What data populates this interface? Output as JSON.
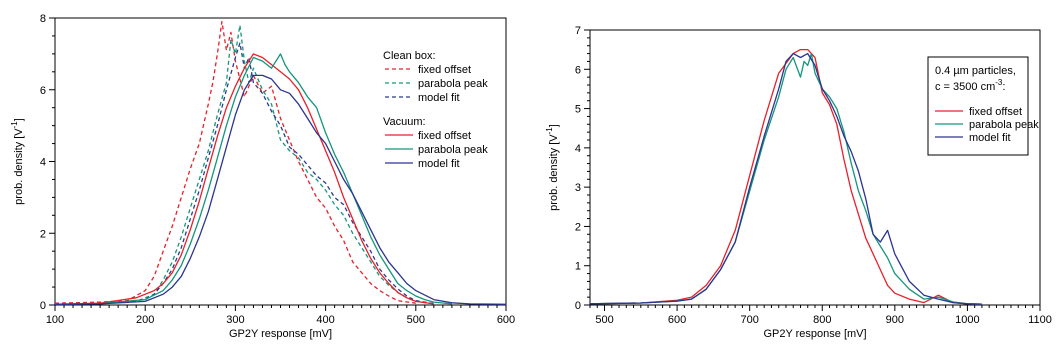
{
  "chart_data": [
    {
      "type": "line",
      "xlabel": "GP2Y response [mV]",
      "ylabel_base": "prob. density [V",
      "ylabel_sup": "-1",
      "ylabel_end": "]",
      "xlim": [
        100,
        600
      ],
      "ylim": [
        0,
        8
      ],
      "xticks": [
        100,
        200,
        300,
        400,
        500,
        600
      ],
      "yticks": [
        0,
        2,
        4,
        6,
        8
      ],
      "legend_position": "top-right",
      "legend_groups": [
        {
          "title": "Clean box:",
          "entries": [
            "fixed offset",
            "parabola peak",
            "model fit"
          ],
          "dashed": true
        },
        {
          "title": "Vacuum:",
          "entries": [
            "fixed offset",
            "parabola peak",
            "model fit"
          ],
          "dashed": false
        }
      ],
      "series": [
        {
          "name": "fixed offset",
          "group": "Clean box",
          "color": "#e8202a",
          "dashed": true,
          "x": [
            100,
            150,
            180,
            200,
            210,
            220,
            230,
            240,
            250,
            260,
            270,
            275,
            280,
            285,
            290,
            295,
            300,
            305,
            310,
            320,
            330,
            340,
            350,
            360,
            370,
            380,
            390,
            400,
            410,
            420,
            430,
            440,
            450,
            460,
            470,
            480,
            500
          ],
          "y": [
            0.05,
            0.08,
            0.12,
            0.4,
            0.8,
            1.5,
            2.2,
            3.0,
            3.8,
            4.5,
            5.6,
            6.2,
            7.0,
            7.9,
            7.1,
            7.6,
            6.8,
            6.3,
            5.8,
            6.4,
            5.9,
            6.1,
            5.2,
            4.6,
            4.0,
            3.5,
            3.0,
            2.7,
            2.2,
            1.8,
            1.2,
            0.9,
            0.6,
            0.4,
            0.25,
            0.12,
            0.05
          ]
        },
        {
          "name": "parabola peak",
          "group": "Clean box",
          "color": "#14967c",
          "dashed": true,
          "x": [
            100,
            150,
            190,
            210,
            220,
            230,
            240,
            250,
            260,
            270,
            280,
            290,
            295,
            300,
            305,
            310,
            315,
            320,
            330,
            340,
            350,
            360,
            370,
            380,
            390,
            400,
            410,
            420,
            430,
            440,
            450,
            460,
            470,
            480,
            490,
            500,
            520
          ],
          "y": [
            0.03,
            0.05,
            0.1,
            0.3,
            0.7,
            1.2,
            1.9,
            2.7,
            3.5,
            4.3,
            5.3,
            6.2,
            7.4,
            7.0,
            7.8,
            6.8,
            6.2,
            6.6,
            6.0,
            5.6,
            4.6,
            4.3,
            4.1,
            3.7,
            3.5,
            3.2,
            2.8,
            2.5,
            2.0,
            1.6,
            1.2,
            0.8,
            0.55,
            0.35,
            0.2,
            0.1,
            0.04
          ]
        },
        {
          "name": "model fit",
          "group": "Clean box",
          "color": "#2c3a8c",
          "dashed": true,
          "x": [
            100,
            150,
            200,
            210,
            220,
            230,
            240,
            250,
            260,
            270,
            280,
            290,
            300,
            305,
            310,
            315,
            320,
            330,
            340,
            350,
            360,
            370,
            380,
            390,
            400,
            410,
            420,
            430,
            440,
            450,
            460,
            470,
            480,
            490,
            500,
            520
          ],
          "y": [
            0.02,
            0.04,
            0.15,
            0.3,
            0.6,
            1.0,
            1.6,
            2.4,
            3.2,
            4.1,
            5.0,
            6.0,
            6.9,
            7.3,
            6.6,
            6.9,
            6.2,
            5.9,
            5.4,
            5.0,
            4.4,
            4.2,
            3.9,
            3.6,
            3.4,
            3.0,
            2.8,
            2.3,
            1.9,
            1.5,
            1.0,
            0.7,
            0.45,
            0.25,
            0.12,
            0.04
          ]
        },
        {
          "name": "fixed offset",
          "group": "Vacuum",
          "color": "#e8202a",
          "dashed": false,
          "x": [
            100,
            150,
            190,
            210,
            220,
            230,
            240,
            250,
            260,
            270,
            280,
            290,
            300,
            310,
            320,
            330,
            340,
            350,
            360,
            370,
            380,
            390,
            400,
            410,
            420,
            430,
            440,
            450,
            460,
            470,
            480,
            490,
            500,
            520
          ],
          "y": [
            0.02,
            0.05,
            0.2,
            0.4,
            0.6,
            0.9,
            1.4,
            2.1,
            2.9,
            3.8,
            4.7,
            5.5,
            6.1,
            6.6,
            7.0,
            6.9,
            6.7,
            6.5,
            6.3,
            6.0,
            5.5,
            4.9,
            4.3,
            3.7,
            3.0,
            2.4,
            1.8,
            1.3,
            0.9,
            0.6,
            0.35,
            0.2,
            0.1,
            0.03
          ]
        },
        {
          "name": "parabola peak",
          "group": "Vacuum",
          "color": "#14967c",
          "dashed": false,
          "x": [
            100,
            150,
            200,
            220,
            230,
            240,
            250,
            260,
            270,
            280,
            290,
            300,
            310,
            320,
            330,
            340,
            350,
            355,
            360,
            370,
            380,
            390,
            400,
            410,
            420,
            430,
            440,
            450,
            460,
            470,
            480,
            490,
            500,
            510,
            520,
            540
          ],
          "y": [
            0.02,
            0.04,
            0.15,
            0.4,
            0.7,
            1.1,
            1.7,
            2.4,
            3.2,
            4.1,
            5.0,
            5.8,
            6.4,
            6.9,
            6.8,
            6.6,
            7.0,
            6.7,
            6.5,
            6.2,
            5.8,
            5.5,
            4.8,
            4.2,
            3.7,
            3.1,
            2.5,
            1.9,
            1.4,
            1.0,
            0.6,
            0.4,
            0.25,
            0.15,
            0.08,
            0.03
          ]
        },
        {
          "name": "model fit",
          "group": "Vacuum",
          "color": "#2c3590",
          "dashed": false,
          "x": [
            100,
            150,
            200,
            220,
            230,
            240,
            250,
            260,
            270,
            280,
            290,
            300,
            310,
            320,
            330,
            340,
            350,
            360,
            370,
            380,
            390,
            400,
            410,
            420,
            430,
            440,
            450,
            460,
            470,
            480,
            490,
            500,
            520,
            540,
            560,
            600
          ],
          "y": [
            0.02,
            0.03,
            0.1,
            0.3,
            0.5,
            0.8,
            1.3,
            1.9,
            2.6,
            3.5,
            4.4,
            5.3,
            6.0,
            6.4,
            6.4,
            6.3,
            6.0,
            5.9,
            5.6,
            5.2,
            4.8,
            4.5,
            4.0,
            3.5,
            3.1,
            2.6,
            2.1,
            1.6,
            1.2,
            0.9,
            0.6,
            0.4,
            0.15,
            0.06,
            0.03,
            0.02
          ]
        }
      ]
    },
    {
      "type": "line",
      "xlabel": "GP2Y response [mV]",
      "ylabel_base": "prob. density [V",
      "ylabel_sup": "-1",
      "ylabel_end": "]",
      "xlim": [
        480,
        1100
      ],
      "ylim": [
        0,
        7
      ],
      "xticks": [
        500,
        600,
        700,
        800,
        900,
        1000,
        1100
      ],
      "yticks": [
        0,
        1,
        2,
        3,
        4,
        5,
        6,
        7
      ],
      "legend_position": "top-right",
      "legend_header": [
        "0.4 µm particles,",
        "c = 3500 cm",
        "-3",
        ":"
      ],
      "series": [
        {
          "name": "fixed offset",
          "color": "#e8202a",
          "dashed": false,
          "x": [
            480,
            550,
            600,
            620,
            640,
            660,
            680,
            700,
            720,
            740,
            760,
            770,
            780,
            790,
            800,
            810,
            820,
            830,
            840,
            850,
            860,
            870,
            880,
            890,
            900,
            920,
            940,
            960,
            980,
            1000,
            1020
          ],
          "y": [
            0.03,
            0.05,
            0.12,
            0.2,
            0.5,
            1.0,
            1.9,
            3.3,
            4.7,
            5.9,
            6.4,
            6.5,
            6.5,
            6.3,
            5.4,
            5.1,
            4.6,
            3.7,
            2.9,
            2.3,
            1.7,
            1.3,
            0.9,
            0.5,
            0.3,
            0.15,
            0.06,
            0.25,
            0.06,
            0.03,
            0.02
          ]
        },
        {
          "name": "parabola peak",
          "group": "",
          "color": "#14967c",
          "dashed": false,
          "x": [
            480,
            550,
            600,
            620,
            640,
            660,
            680,
            700,
            720,
            740,
            750,
            760,
            770,
            775,
            780,
            785,
            790,
            800,
            810,
            820,
            830,
            840,
            850,
            860,
            870,
            880,
            890,
            900,
            920,
            940,
            960,
            980,
            1000,
            1020
          ],
          "y": [
            0.03,
            0.05,
            0.1,
            0.15,
            0.4,
            0.9,
            1.6,
            2.9,
            4.2,
            5.3,
            6.0,
            6.3,
            5.8,
            6.2,
            6.1,
            6.4,
            5.9,
            5.5,
            5.3,
            5.0,
            4.4,
            3.6,
            2.9,
            2.4,
            1.8,
            1.5,
            1.2,
            0.8,
            0.4,
            0.15,
            0.2,
            0.08,
            0.03,
            0.02
          ]
        },
        {
          "name": "model fit",
          "group": "",
          "color": "#2c3590",
          "dashed": false,
          "x": [
            480,
            550,
            600,
            620,
            640,
            660,
            680,
            700,
            720,
            740,
            750,
            760,
            770,
            780,
            790,
            800,
            810,
            820,
            830,
            840,
            850,
            860,
            870,
            880,
            890,
            900,
            920,
            940,
            960,
            980,
            1000,
            1020
          ],
          "y": [
            0.03,
            0.05,
            0.1,
            0.15,
            0.4,
            0.9,
            1.6,
            3.0,
            4.3,
            5.5,
            6.2,
            6.4,
            6.3,
            6.4,
            6.1,
            5.5,
            5.2,
            4.8,
            4.3,
            3.9,
            3.4,
            2.7,
            1.8,
            1.6,
            1.9,
            1.3,
            0.6,
            0.25,
            0.15,
            0.06,
            0.03,
            0.02
          ]
        }
      ]
    }
  ]
}
